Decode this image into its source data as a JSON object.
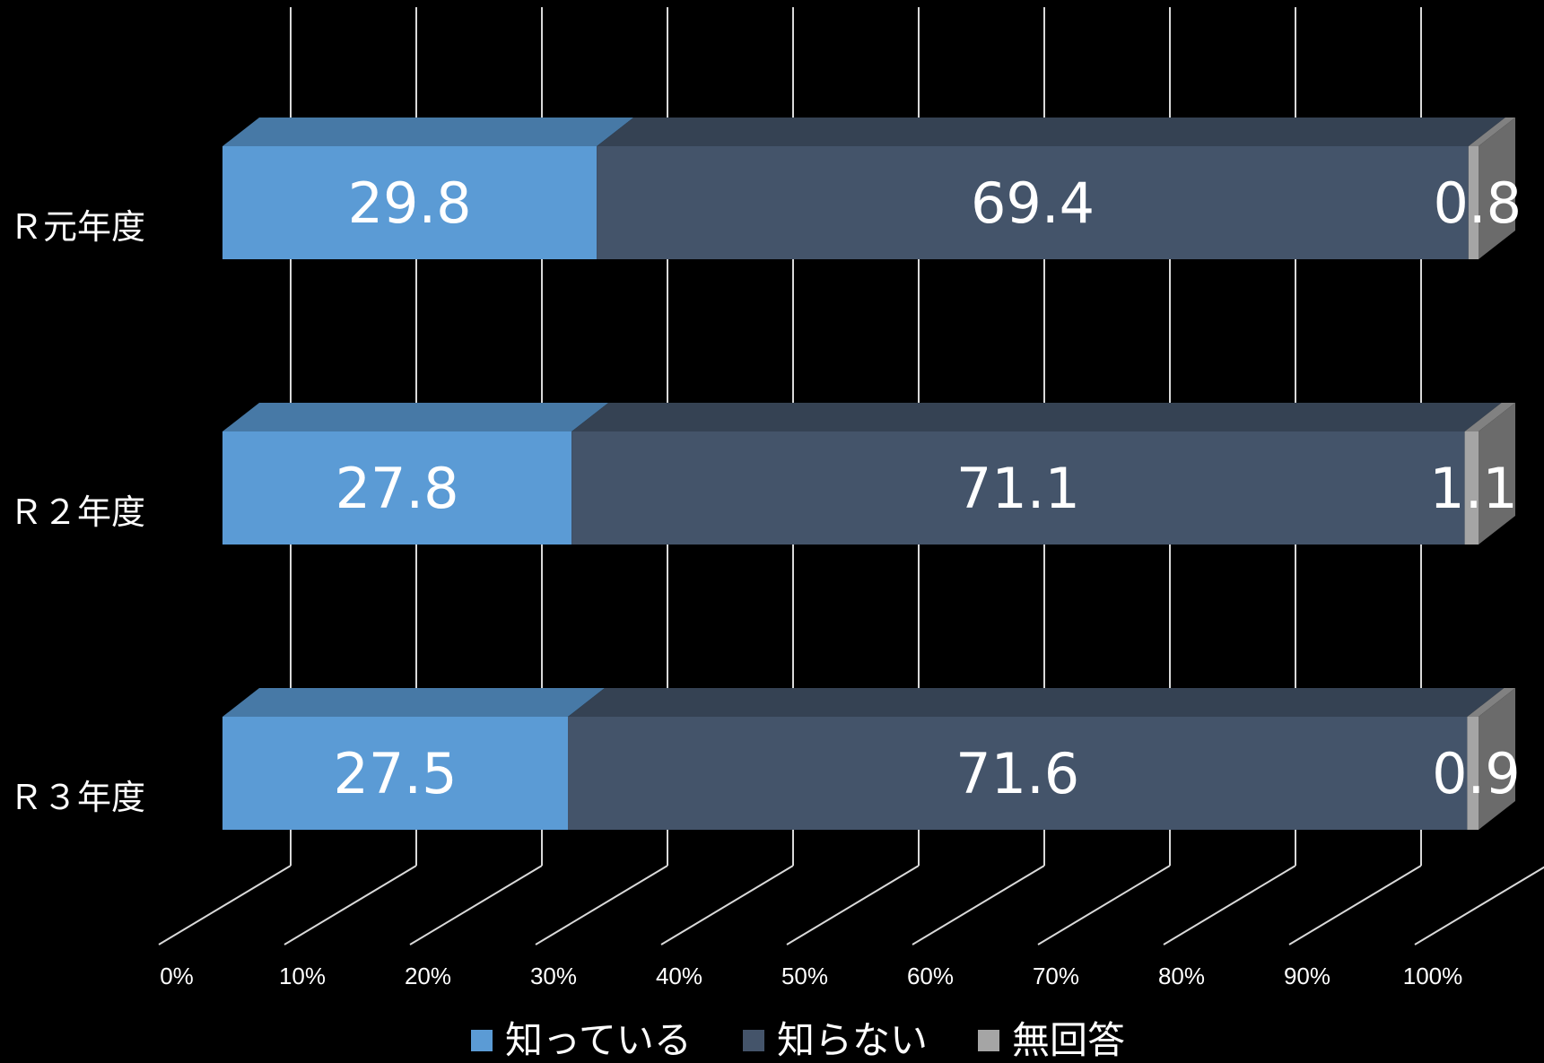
{
  "chart_data": {
    "type": "bar",
    "orientation": "horizontal",
    "stacked": "percent",
    "three_d": true,
    "categories": [
      "Ｒ元年度",
      "Ｒ２年度",
      "Ｒ３年度"
    ],
    "series": [
      {
        "name": "知っている",
        "values": [
          29.8,
          27.8,
          27.5
        ],
        "color": "#5B9BD5"
      },
      {
        "name": "知らない",
        "values": [
          69.4,
          71.1,
          71.6
        ],
        "color": "#44546A"
      },
      {
        "name": "無回答",
        "values": [
          0.8,
          1.1,
          0.9
        ],
        "color": "#A5A5A5"
      }
    ],
    "xticks": [
      "0%",
      "10%",
      "20%",
      "30%",
      "40%",
      "50%",
      "60%",
      "70%",
      "80%",
      "90%",
      "100%"
    ],
    "xlim": [
      0,
      100
    ],
    "grid": true,
    "legend_position": "bottom",
    "background": "#000000"
  }
}
